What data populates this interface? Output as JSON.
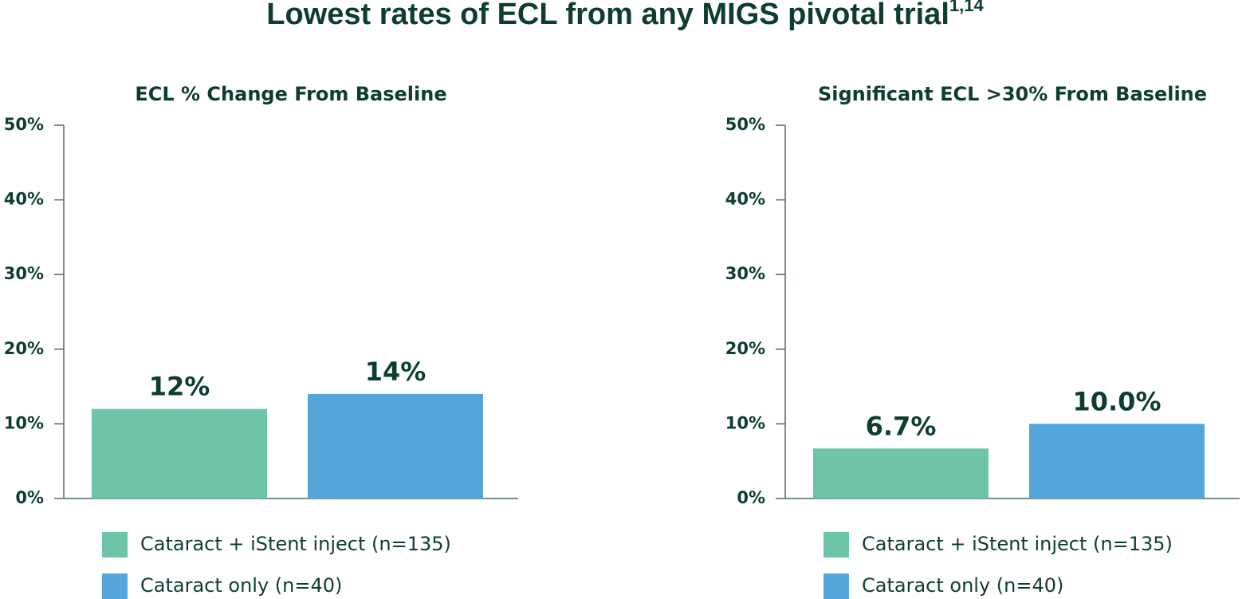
{
  "title": "Lowest rates of ECL from any MIGS pivotal trial",
  "title_superscript": "1,14",
  "chart_data": [
    {
      "type": "bar",
      "title": "ECL % Change From Baseline",
      "categories": [
        null
      ],
      "series": [
        {
          "name": "Cataract + iStent inject (n=135)",
          "color": "#6dc5a5",
          "values": [
            12
          ],
          "value_labels": [
            "12%"
          ]
        },
        {
          "name": "Cataract only (n=40)",
          "color": "#52a6da",
          "values": [
            14
          ],
          "value_labels": [
            "14%"
          ]
        }
      ],
      "ylim": [
        0,
        50
      ],
      "yticks": [
        {
          "value": 0,
          "label": "0%"
        },
        {
          "value": 10,
          "label": "10%"
        },
        {
          "value": 20,
          "label": "20%"
        },
        {
          "value": 30,
          "label": "30%"
        },
        {
          "value": 40,
          "label": "40%"
        },
        {
          "value": 50,
          "label": "50%"
        }
      ],
      "grid": false
    },
    {
      "type": "bar",
      "title": "Significant ECL >30% From Baseline",
      "categories": [
        null
      ],
      "series": [
        {
          "name": "Cataract + iStent inject (n=135)",
          "color": "#6dc5a5",
          "values": [
            6.7
          ],
          "value_labels": [
            "6.7%"
          ]
        },
        {
          "name": "Cataract only (n=40)",
          "color": "#52a6da",
          "values": [
            10
          ],
          "value_labels": [
            "10.0%"
          ]
        }
      ],
      "ylim": [
        0,
        50
      ],
      "yticks": [
        {
          "value": 0,
          "label": "0%"
        },
        {
          "value": 10,
          "label": "10%"
        },
        {
          "value": 20,
          "label": "20%"
        },
        {
          "value": 30,
          "label": "30%"
        },
        {
          "value": 40,
          "label": "40%"
        },
        {
          "value": 50,
          "label": "50%"
        }
      ],
      "grid": false
    }
  ]
}
